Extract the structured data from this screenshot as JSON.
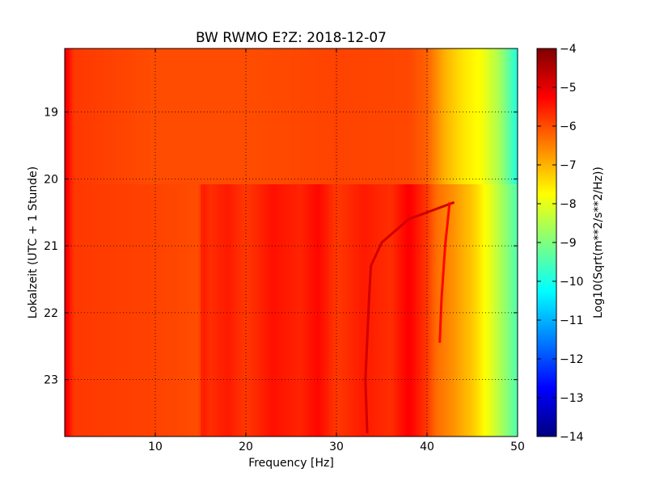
{
  "chart_data": {
    "type": "heatmap",
    "title": "BW RWMO E?Z: 2018-12-07",
    "xlabel": "Frequency [Hz]",
    "ylabel": "Lokalzeit (UTC + 1 Stunde)",
    "colorbar_label": "Log10(Sqrt(m**2/s**2/Hz))",
    "xlim": [
      0,
      50
    ],
    "ylim": [
      18.05,
      23.85
    ],
    "y_inverted": true,
    "clim": [
      -14,
      -4
    ],
    "colormap": "jet",
    "grid": true,
    "x_ticks": [
      10,
      20,
      30,
      40,
      50
    ],
    "y_ticks": [
      19,
      20,
      21,
      22,
      23
    ],
    "colorbar_ticks": [
      -4,
      -5,
      -6,
      -7,
      -8,
      -9,
      -10,
      -11,
      -12,
      -13,
      -14
    ],
    "bands": [
      {
        "y_start": 18.05,
        "y_end": 20.08,
        "profile": [
          [
            0,
            -5.0
          ],
          [
            1,
            -5.8
          ],
          [
            10,
            -6.0
          ],
          [
            20,
            -6.0
          ],
          [
            30,
            -5.9
          ],
          [
            38,
            -5.95
          ],
          [
            40,
            -6.2
          ],
          [
            42,
            -7.0
          ],
          [
            44,
            -7.5
          ],
          [
            46,
            -7.8
          ],
          [
            48,
            -8.6
          ],
          [
            50,
            -10.0
          ]
        ]
      },
      {
        "y_start": 20.08,
        "y_end": 23.85,
        "profile": [
          [
            0,
            -5.0
          ],
          [
            1,
            -5.8
          ],
          [
            10,
            -5.9
          ],
          [
            14.8,
            -6.0
          ],
          [
            15.2,
            -5.5
          ],
          [
            16,
            -5.7
          ],
          [
            18,
            -5.5
          ],
          [
            20,
            -5.8
          ],
          [
            23,
            -5.4
          ],
          [
            26,
            -5.6
          ],
          [
            28,
            -5.3
          ],
          [
            30,
            -5.8
          ],
          [
            33,
            -5.5
          ],
          [
            36,
            -5.7
          ],
          [
            38,
            -5.2
          ],
          [
            40,
            -5.8
          ],
          [
            41,
            -6.3
          ],
          [
            43,
            -6.7
          ],
          [
            45,
            -7.2
          ],
          [
            47,
            -8.0
          ],
          [
            49,
            -9.0
          ],
          [
            50,
            -9.5
          ]
        ]
      }
    ],
    "traces": [
      {
        "points": [
          [
            43,
            20.35
          ],
          [
            38,
            20.6
          ],
          [
            35,
            20.95
          ],
          [
            33.8,
            21.3
          ],
          [
            33.6,
            21.8
          ],
          [
            33.4,
            22.4
          ],
          [
            33.2,
            23.0
          ],
          [
            33.4,
            23.8
          ]
        ],
        "value": -4.8
      },
      {
        "points": [
          [
            42.5,
            20.35
          ],
          [
            42,
            21.0
          ],
          [
            41.6,
            21.8
          ],
          [
            41.4,
            22.45
          ]
        ],
        "value": -5.3
      }
    ]
  }
}
